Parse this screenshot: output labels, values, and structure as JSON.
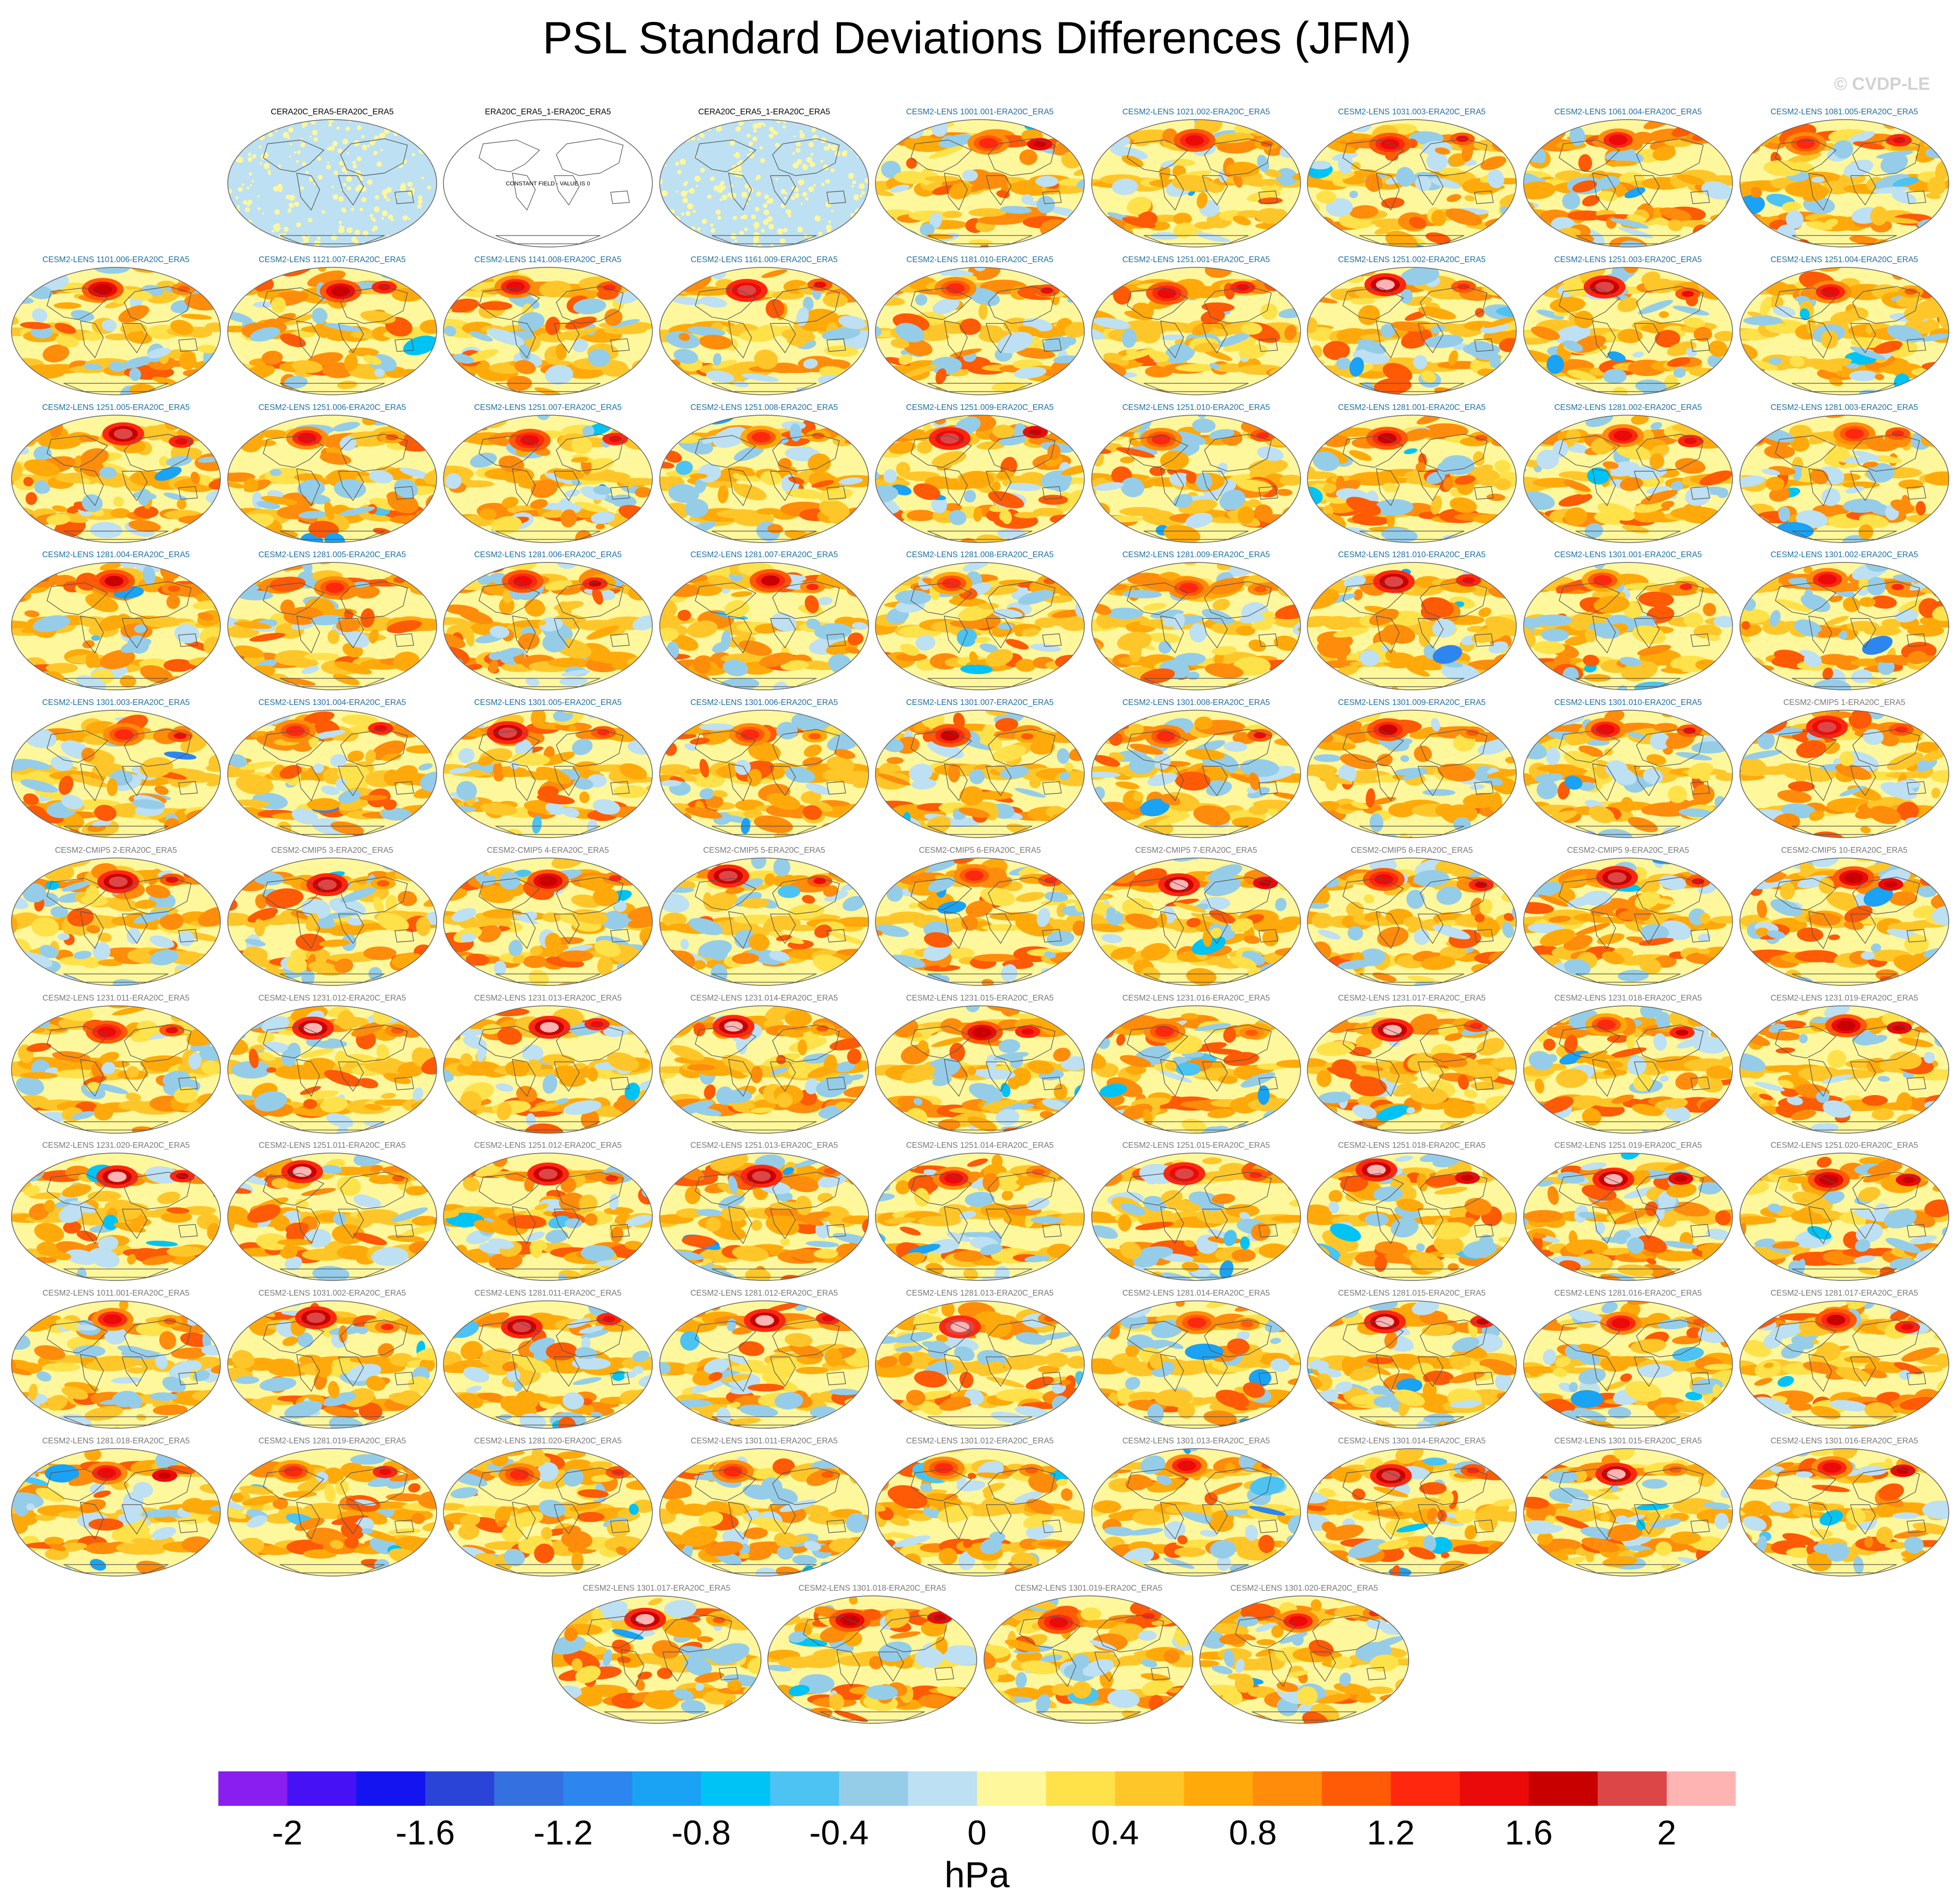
{
  "title": "PSL Standard Deviations Differences (JFM)",
  "watermark": "© CVDP-LE",
  "colorbar": {
    "unit": "hPa",
    "tick_labels": [
      "-2",
      "-1.6",
      "-1.2",
      "-0.8",
      "-0.4",
      "0",
      "0.4",
      "0.8",
      "1.2",
      "1.6",
      "2"
    ],
    "colors": [
      "#8a1ef0",
      "#4612f5",
      "#1414f0",
      "#2a44d8",
      "#3570e0",
      "#2d86f0",
      "#1aa2f5",
      "#00c3f5",
      "#4cc3f2",
      "#95cde8",
      "#bde0f2",
      "#fff79b",
      "#ffe14a",
      "#ffc629",
      "#ffaa0a",
      "#ff8c0a",
      "#ff5a05",
      "#ff280f",
      "#eb0a0a",
      "#c80000",
      "#dc4646",
      "#ffb4b4"
    ]
  },
  "label_colors": {
    "obs": "#000000",
    "lens": "#1e6ea0",
    "other": "#787878"
  },
  "chart_data": {
    "type": "map-panel-grid",
    "variable": "PSL",
    "season": "JFM",
    "reference": "ERA20C_ERA5",
    "value_range": [
      -2.2,
      2.2
    ],
    "contour_interval": 0.2,
    "panels": [
      {
        "label": "CERA20C_ERA5-ERA20C_ERA5",
        "group": "obs",
        "field": "near-zero"
      },
      {
        "label": "ERA20C_ERA5_1-ERA20C_ERA5",
        "group": "obs",
        "field": "constant",
        "note": "CONSTANT FIELD - VALUE IS 0"
      },
      {
        "label": "CERA20C_ERA5_1-ERA20C_ERA5",
        "group": "obs",
        "field": "near-zero"
      },
      {
        "label": "CESM2-LENS 1001.001-ERA20C_ERA5",
        "group": "lens"
      },
      {
        "label": "CESM2-LENS 1021.002-ERA20C_ERA5",
        "group": "lens"
      },
      {
        "label": "CESM2-LENS 1031.003-ERA20C_ERA5",
        "group": "lens"
      },
      {
        "label": "CESM2-LENS 1061.004-ERA20C_ERA5",
        "group": "lens"
      },
      {
        "label": "CESM2-LENS 1081.005-ERA20C_ERA5",
        "group": "lens"
      },
      {
        "label": "CESM2-LENS 1101.006-ERA20C_ERA5",
        "group": "lens"
      },
      {
        "label": "CESM2-LENS 1121.007-ERA20C_ERA5",
        "group": "lens"
      },
      {
        "label": "CESM2-LENS 1141.008-ERA20C_ERA5",
        "group": "lens"
      },
      {
        "label": "CESM2-LENS 1161.009-ERA20C_ERA5",
        "group": "lens"
      },
      {
        "label": "CESM2-LENS 1181.010-ERA20C_ERA5",
        "group": "lens"
      },
      {
        "label": "CESM2-LENS 1251.001-ERA20C_ERA5",
        "group": "lens"
      },
      {
        "label": "CESM2-LENS 1251.002-ERA20C_ERA5",
        "group": "lens"
      },
      {
        "label": "CESM2-LENS 1251.003-ERA20C_ERA5",
        "group": "lens"
      },
      {
        "label": "CESM2-LENS 1251.004-ERA20C_ERA5",
        "group": "lens"
      },
      {
        "label": "CESM2-LENS 1251.005-ERA20C_ERA5",
        "group": "lens"
      },
      {
        "label": "CESM2-LENS 1251.006-ERA20C_ERA5",
        "group": "lens"
      },
      {
        "label": "CESM2-LENS 1251.007-ERA20C_ERA5",
        "group": "lens"
      },
      {
        "label": "CESM2-LENS 1251.008-ERA20C_ERA5",
        "group": "lens"
      },
      {
        "label": "CESM2-LENS 1251.009-ERA20C_ERA5",
        "group": "lens"
      },
      {
        "label": "CESM2-LENS 1251.010-ERA20C_ERA5",
        "group": "lens"
      },
      {
        "label": "CESM2-LENS 1281.001-ERA20C_ERA5",
        "group": "lens"
      },
      {
        "label": "CESM2-LENS 1281.002-ERA20C_ERA5",
        "group": "lens"
      },
      {
        "label": "CESM2-LENS 1281.003-ERA20C_ERA5",
        "group": "lens"
      },
      {
        "label": "CESM2-LENS 1281.004-ERA20C_ERA5",
        "group": "lens"
      },
      {
        "label": "CESM2-LENS 1281.005-ERA20C_ERA5",
        "group": "lens"
      },
      {
        "label": "CESM2-LENS 1281.006-ERA20C_ERA5",
        "group": "lens"
      },
      {
        "label": "CESM2-LENS 1281.007-ERA20C_ERA5",
        "group": "lens"
      },
      {
        "label": "CESM2-LENS 1281.008-ERA20C_ERA5",
        "group": "lens"
      },
      {
        "label": "CESM2-LENS 1281.009-ERA20C_ERA5",
        "group": "lens"
      },
      {
        "label": "CESM2-LENS 1281.010-ERA20C_ERA5",
        "group": "lens"
      },
      {
        "label": "CESM2-LENS 1301.001-ERA20C_ERA5",
        "group": "lens"
      },
      {
        "label": "CESM2-LENS 1301.002-ERA20C_ERA5",
        "group": "lens"
      },
      {
        "label": "CESM2-LENS 1301.003-ERA20C_ERA5",
        "group": "lens"
      },
      {
        "label": "CESM2-LENS 1301.004-ERA20C_ERA5",
        "group": "lens"
      },
      {
        "label": "CESM2-LENS 1301.005-ERA20C_ERA5",
        "group": "lens"
      },
      {
        "label": "CESM2-LENS 1301.006-ERA20C_ERA5",
        "group": "lens"
      },
      {
        "label": "CESM2-LENS 1301.007-ERA20C_ERA5",
        "group": "lens"
      },
      {
        "label": "CESM2-LENS 1301.008-ERA20C_ERA5",
        "group": "lens"
      },
      {
        "label": "CESM2-LENS 1301.009-ERA20C_ERA5",
        "group": "lens"
      },
      {
        "label": "CESM2-LENS 1301.010-ERA20C_ERA5",
        "group": "lens"
      },
      {
        "label": "CESM2-CMIP5 1-ERA20C_ERA5",
        "group": "other"
      },
      {
        "label": "CESM2-CMIP5 2-ERA20C_ERA5",
        "group": "other"
      },
      {
        "label": "CESM2-CMIP5 3-ERA20C_ERA5",
        "group": "other"
      },
      {
        "label": "CESM2-CMIP5 4-ERA20C_ERA5",
        "group": "other"
      },
      {
        "label": "CESM2-CMIP5 5-ERA20C_ERA5",
        "group": "other"
      },
      {
        "label": "CESM2-CMIP5 6-ERA20C_ERA5",
        "group": "other"
      },
      {
        "label": "CESM2-CMIP5 7-ERA20C_ERA5",
        "group": "other"
      },
      {
        "label": "CESM2-CMIP5 8-ERA20C_ERA5",
        "group": "other"
      },
      {
        "label": "CESM2-CMIP5 9-ERA20C_ERA5",
        "group": "other"
      },
      {
        "label": "CESM2-CMIP5 10-ERA20C_ERA5",
        "group": "other"
      },
      {
        "label": "CESM2-LENS 1231.011-ERA20C_ERA5",
        "group": "other"
      },
      {
        "label": "CESM2-LENS 1231.012-ERA20C_ERA5",
        "group": "other"
      },
      {
        "label": "CESM2-LENS 1231.013-ERA20C_ERA5",
        "group": "other"
      },
      {
        "label": "CESM2-LENS 1231.014-ERA20C_ERA5",
        "group": "other"
      },
      {
        "label": "CESM2-LENS 1231.015-ERA20C_ERA5",
        "group": "other"
      },
      {
        "label": "CESM2-LENS 1231.016-ERA20C_ERA5",
        "group": "other"
      },
      {
        "label": "CESM2-LENS 1231.017-ERA20C_ERA5",
        "group": "other"
      },
      {
        "label": "CESM2-LENS 1231.018-ERA20C_ERA5",
        "group": "other"
      },
      {
        "label": "CESM2-LENS 1231.019-ERA20C_ERA5",
        "group": "other"
      },
      {
        "label": "CESM2-LENS 1231.020-ERA20C_ERA5",
        "group": "other"
      },
      {
        "label": "CESM2-LENS 1251.011-ERA20C_ERA5",
        "group": "other"
      },
      {
        "label": "CESM2-LENS 1251.012-ERA20C_ERA5",
        "group": "other"
      },
      {
        "label": "CESM2-LENS 1251.013-ERA20C_ERA5",
        "group": "other"
      },
      {
        "label": "CESM2-LENS 1251.014-ERA20C_ERA5",
        "group": "other"
      },
      {
        "label": "CESM2-LENS 1251.015-ERA20C_ERA5",
        "group": "other"
      },
      {
        "label": "CESM2-LENS 1251.018-ERA20C_ERA5",
        "group": "other"
      },
      {
        "label": "CESM2-LENS 1251.019-ERA20C_ERA5",
        "group": "other"
      },
      {
        "label": "CESM2-LENS 1251.020-ERA20C_ERA5",
        "group": "other"
      },
      {
        "label": "CESM2-LENS 1011.001-ERA20C_ERA5",
        "group": "other"
      },
      {
        "label": "CESM2-LENS 1031.002-ERA20C_ERA5",
        "group": "other"
      },
      {
        "label": "CESM2-LENS 1281.011-ERA20C_ERA5",
        "group": "other"
      },
      {
        "label": "CESM2-LENS 1281.012-ERA20C_ERA5",
        "group": "other"
      },
      {
        "label": "CESM2-LENS 1281.013-ERA20C_ERA5",
        "group": "other"
      },
      {
        "label": "CESM2-LENS 1281.014-ERA20C_ERA5",
        "group": "other"
      },
      {
        "label": "CESM2-LENS 1281.015-ERA20C_ERA5",
        "group": "other"
      },
      {
        "label": "CESM2-LENS 1281.016-ERA20C_ERA5",
        "group": "other"
      },
      {
        "label": "CESM2-LENS 1281.017-ERA20C_ERA5",
        "group": "other"
      },
      {
        "label": "CESM2-LENS 1281.018-ERA20C_ERA5",
        "group": "other"
      },
      {
        "label": "CESM2-LENS 1281.019-ERA20C_ERA5",
        "group": "other"
      },
      {
        "label": "CESM2-LENS 1281.020-ERA20C_ERA5",
        "group": "other"
      },
      {
        "label": "CESM2-LENS 1301.011-ERA20C_ERA5",
        "group": "other"
      },
      {
        "label": "CESM2-LENS 1301.012-ERA20C_ERA5",
        "group": "other"
      },
      {
        "label": "CESM2-LENS 1301.013-ERA20C_ERA5",
        "group": "other"
      },
      {
        "label": "CESM2-LENS 1301.014-ERA20C_ERA5",
        "group": "other"
      },
      {
        "label": "CESM2-LENS 1301.015-ERA20C_ERA5",
        "group": "other"
      },
      {
        "label": "CESM2-LENS 1301.016-ERA20C_ERA5",
        "group": "other"
      },
      {
        "label": "CESM2-LENS 1301.017-ERA20C_ERA5",
        "group": "other"
      },
      {
        "label": "CESM2-LENS 1301.018-ERA20C_ERA5",
        "group": "other"
      },
      {
        "label": "CESM2-LENS 1301.019-ERA20C_ERA5",
        "group": "other"
      },
      {
        "label": "CESM2-LENS 1301.020-ERA20C_ERA5",
        "group": "other"
      }
    ]
  }
}
